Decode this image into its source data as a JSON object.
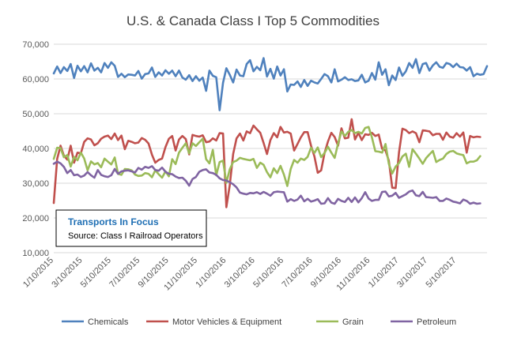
{
  "chart_data": {
    "type": "line",
    "title": "U.S. & Canada Class I Top 5 Commodities",
    "xlabel": "",
    "ylabel": "",
    "ylim": [
      10000,
      70000
    ],
    "yticks": [
      "10,000",
      "20,000",
      "30,000",
      "40,000",
      "50,000",
      "60,000",
      "70,000"
    ],
    "ytick_values": [
      10000,
      20000,
      30000,
      40000,
      50000,
      60000,
      70000
    ],
    "xticks": [
      "1/10/2015",
      "3/10/2015",
      "5/10/2015",
      "7/10/2015",
      "9/10/2015",
      "11/10/2015",
      "1/10/2016",
      "3/10/2016",
      "5/10/2016",
      "7/10/2016",
      "9/10/2016",
      "11/10/2016",
      "1/10/2017",
      "3/10/2017",
      "5/10/2017"
    ],
    "grid": "horizontal",
    "legend_position": "bottom",
    "annotation": {
      "title": "Transports  In Focus",
      "subtitle": "Source: Class I Railroad Operators"
    },
    "series": [
      {
        "name": "Chemicals",
        "color": "#4f81bd",
        "values": [
          61600,
          63600,
          61700,
          63400,
          62300,
          64300,
          60300,
          63800,
          62200,
          63700,
          61900,
          64500,
          62400,
          63200,
          61900,
          64600,
          63200,
          64800,
          63800,
          60600,
          61500,
          60500,
          61300,
          61200,
          61000,
          62300,
          60100,
          61400,
          61600,
          63300,
          60600,
          61900,
          61000,
          62500,
          61500,
          62400,
          60800,
          62400,
          60400,
          59800,
          61100,
          59400,
          60800,
          59500,
          60400,
          56600,
          62400,
          60900,
          60500,
          51000,
          58900,
          63100,
          61200,
          59000,
          62700,
          61000,
          60800,
          64300,
          65400,
          62200,
          63500,
          62500,
          66000,
          60700,
          62900,
          60100,
          63600,
          61000,
          62800,
          56400,
          58400,
          58300,
          59300,
          57700,
          59700,
          58000,
          59500,
          59000,
          58700,
          60000,
          61400,
          60800,
          59000,
          62800,
          59300,
          59800,
          60500,
          59700,
          59900,
          59400,
          59600,
          61200,
          59000,
          59500,
          61700,
          59800,
          64800,
          61200,
          62800,
          58200,
          61000,
          59700,
          63300,
          60900,
          62200,
          64600,
          63200,
          65700,
          61700,
          64300,
          64600,
          62400,
          63900,
          64800,
          63500,
          63200,
          64600,
          64300,
          63400,
          64400,
          63400,
          63300,
          62400,
          63400,
          60800,
          61500,
          61200,
          61400,
          63700
        ]
      },
      {
        "name": "Motor Vehicles & Equipment",
        "color": "#c0504d",
        "values": [
          24300,
          37000,
          40800,
          37900,
          36800,
          40800,
          35900,
          38800,
          38600,
          41900,
          42900,
          42600,
          40900,
          41500,
          42800,
          43400,
          43700,
          42700,
          44300,
          42400,
          43700,
          39800,
          42200,
          41900,
          41500,
          41700,
          43000,
          42500,
          41400,
          38200,
          35900,
          36700,
          37100,
          40400,
          42800,
          43600,
          39400,
          42600,
          43600,
          42700,
          38300,
          43900,
          43600,
          43400,
          43800,
          41800,
          42000,
          42900,
          42300,
          44400,
          44300,
          23100,
          29400,
          38400,
          42900,
          44300,
          42300,
          44900,
          44400,
          46600,
          45500,
          44500,
          41600,
          38400,
          42400,
          44400,
          43200,
          46200,
          44600,
          44800,
          44300,
          39400,
          41300,
          43200,
          44700,
          44700,
          40800,
          37700,
          33000,
          33700,
          38700,
          42000,
          44500,
          43300,
          40800,
          45800,
          42900,
          43100,
          48400,
          42600,
          44500,
          42400,
          44100,
          43900,
          44500,
          43600,
          44000,
          39900,
          39400,
          36500,
          28700,
          28600,
          38900,
          45700,
          45300,
          44400,
          44900,
          44400,
          41800,
          45200,
          45100,
          44900,
          43800,
          44200,
          44200,
          42500,
          44600,
          43400,
          43100,
          44400,
          43400,
          44600,
          38800,
          43600,
          43200,
          43400,
          43300
        ]
      },
      {
        "name": "Grain",
        "color": "#9bbb59",
        "values": [
          37000,
          40200,
          40100,
          37500,
          38100,
          34800,
          37600,
          36600,
          38800,
          37100,
          33700,
          36300,
          35400,
          35800,
          34600,
          37100,
          36200,
          35400,
          37400,
          32700,
          32400,
          34100,
          34000,
          33700,
          32500,
          32100,
          32200,
          32900,
          32700,
          31700,
          33700,
          32600,
          31600,
          33400,
          32000,
          36900,
          35500,
          38800,
          40200,
          41500,
          38600,
          41500,
          40700,
          41800,
          42800,
          36900,
          35700,
          39600,
          32300,
          36100,
          36500,
          30100,
          34000,
          36100,
          36500,
          37300,
          37000,
          36800,
          36600,
          37000,
          34400,
          35900,
          35300,
          33200,
          31700,
          34300,
          32900,
          35000,
          32500,
          29200,
          34100,
          36700,
          35900,
          37100,
          36700,
          37600,
          40200,
          38700,
          40300,
          37500,
          38700,
          40500,
          38800,
          37300,
          41400,
          44900,
          43600,
          44800,
          45300,
          44400,
          44800,
          44300,
          45900,
          46200,
          43200,
          39200,
          39100,
          38800,
          41300,
          35600,
          32800,
          34800,
          35800,
          37700,
          38500,
          34700,
          39800,
          38500,
          37100,
          35600,
          37200,
          38300,
          39300,
          36100,
          36700,
          37100,
          38400,
          39100,
          39300,
          38600,
          38300,
          38100,
          35700,
          36200,
          36200,
          36600,
          37800
        ]
      },
      {
        "name": "Petroleum",
        "color": "#8064a2",
        "values": [
          35600,
          36200,
          35700,
          34700,
          32900,
          33800,
          32300,
          32500,
          31800,
          32200,
          33200,
          32300,
          31600,
          33800,
          32400,
          32000,
          31800,
          32300,
          34100,
          32700,
          33400,
          33600,
          33700,
          33400,
          33100,
          34400,
          33900,
          34700,
          34400,
          34900,
          33800,
          33600,
          34500,
          33300,
          32700,
          32600,
          31900,
          31500,
          31600,
          30700,
          29300,
          31200,
          31800,
          33300,
          33800,
          34000,
          33100,
          32900,
          32400,
          31400,
          30900,
          30800,
          30300,
          29700,
          28800,
          27300,
          27000,
          26800,
          27200,
          27100,
          27400,
          26900,
          27500,
          27000,
          26400,
          27400,
          27600,
          27500,
          27400,
          24700,
          25400,
          24900,
          25300,
          26400,
          24800,
          25500,
          24700,
          25000,
          25400,
          24100,
          24200,
          25700,
          24400,
          24100,
          25500,
          24900,
          24600,
          25800,
          24600,
          25900,
          24500,
          25700,
          27400,
          25600,
          24900,
          25200,
          25200,
          27500,
          27600,
          26200,
          26400,
          27200,
          25800,
          26300,
          26800,
          27600,
          27900,
          26500,
          26300,
          27500,
          26000,
          25900,
          25800,
          26000,
          24900,
          24900,
          25600,
          25200,
          24700,
          24500,
          24200,
          25300,
          24900,
          24100,
          24400,
          24100,
          24200
        ]
      }
    ]
  }
}
